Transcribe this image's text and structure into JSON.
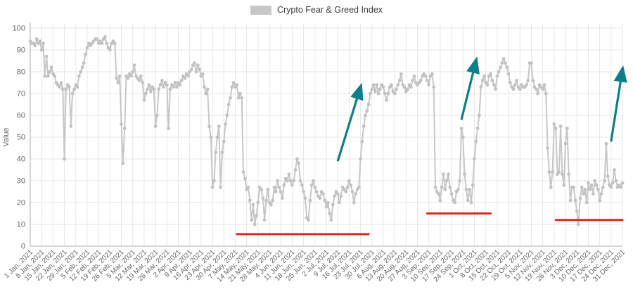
{
  "legend": {
    "label": "Crypto Fear & Greed Index",
    "swatch_color": "#c7c7c7"
  },
  "chart_data": {
    "type": "line",
    "title": "",
    "xlabel": "",
    "ylabel": "Value",
    "ylim": [
      0,
      100
    ],
    "grid": true,
    "legend_position": "top-center",
    "y_ticks": [
      0,
      10,
      20,
      30,
      40,
      50,
      60,
      70,
      80,
      90,
      100
    ],
    "x_tick_labels": [
      "1 Jan, 2021",
      "8 Jan, 2021",
      "15 Jan, 2021",
      "22 Jan, 2021",
      "29 Jan, 2021",
      "5 Feb, 2021",
      "12 Feb, 2021",
      "19 Feb, 2021",
      "26 Feb, 2021",
      "5 Mar, 2021",
      "12 Mar, 2021",
      "19 Mar, 2021",
      "26 Mar, 2021",
      "2 Apr, 2021",
      "9 Apr, 2021",
      "16 Apr, 2021",
      "23 Apr, 2021",
      "30 Apr, 2021",
      "7 May, 2021",
      "14 May, 2021",
      "21 May, 2021",
      "28 May, 2021",
      "4 Jun, 2021",
      "11 Jun, 2021",
      "18 Jun, 2021",
      "25 Jun, 2021",
      "2 Jul, 2021",
      "9 Jul, 2021",
      "16 Jul, 2021",
      "23 Jul, 2021",
      "30 Jul, 2021",
      "6 Aug, 2021",
      "13 Aug, 2021",
      "20 Aug, 2021",
      "27 Aug, 2021",
      "3 Sep, 2021",
      "10 Sep, 2021",
      "17 Sep, 2021",
      "24 Sep, 2021",
      "1 Oct, 2021",
      "8 Oct, 2021",
      "15 Oct, 2021",
      "22 Oct, 2021",
      "29 Oct, 2021",
      "5 Nov, 2021",
      "12 Nov, 2021",
      "19 Nov, 2021",
      "26 Nov, 2021",
      "3 Dec, 2021",
      "10 Dec, 2021",
      "17 Dec, 2021",
      "24 Dec, 2021",
      "31 Dec, 2021"
    ],
    "x_note": "daily values, one point per day of 2021; ticks weekly",
    "colors": {
      "grid": "#e6e6e6",
      "axis": "#a8a8a8",
      "tick_text": "#666666"
    },
    "series": [
      {
        "name": "Crypto Fear & Greed Index",
        "color": "#c7c7c7",
        "marker": "circle",
        "marker_color": "#c2c2c2",
        "values": [
          94,
          93,
          93,
          92,
          95,
          93,
          94,
          90,
          93,
          78,
          87,
          78,
          80,
          82,
          79,
          78,
          75,
          74,
          73,
          75,
          72,
          40,
          72,
          74,
          73,
          55,
          70,
          72,
          74,
          73,
          78,
          80,
          82,
          84,
          88,
          91,
          93,
          92,
          93,
          94,
          95,
          95,
          93,
          94,
          93,
          95,
          96,
          93,
          91,
          90,
          93,
          94,
          93,
          77,
          75,
          78,
          56,
          38,
          54,
          78,
          77,
          79,
          78,
          80,
          83,
          78,
          77,
          76,
          78,
          75,
          67,
          70,
          72,
          74,
          71,
          73,
          72,
          55,
          60,
          72,
          74,
          76,
          73,
          75,
          74,
          54,
          72,
          74,
          73,
          75,
          73,
          75,
          74,
          76,
          78,
          77,
          79,
          78,
          80,
          81,
          83,
          84,
          80,
          83,
          81,
          78,
          79,
          73,
          70,
          72,
          55,
          50,
          27,
          30,
          43,
          50,
          55,
          27,
          43,
          48,
          56,
          60,
          65,
          68,
          73,
          75,
          73,
          74,
          68,
          70,
          68,
          34,
          31,
          26,
          27,
          21,
          12,
          19,
          10,
          14,
          20,
          27,
          26,
          22,
          12,
          21,
          26,
          20,
          19,
          21,
          27,
          25,
          30,
          27,
          25,
          22,
          28,
          31,
          30,
          33,
          30,
          28,
          30,
          35,
          40,
          38,
          30,
          28,
          25,
          22,
          13,
          12,
          21,
          28,
          30,
          27,
          25,
          23,
          22,
          25,
          24,
          21,
          18,
          20,
          15,
          12,
          19,
          23,
          25,
          24,
          20,
          23,
          27,
          26,
          25,
          27,
          30,
          28,
          25,
          20,
          24,
          26,
          27,
          40,
          48,
          55,
          60,
          62,
          65,
          70,
          72,
          74,
          71,
          74,
          70,
          72,
          74,
          73,
          70,
          67,
          70,
          73,
          74,
          71,
          70,
          72,
          74,
          76,
          79,
          74,
          73,
          71,
          72,
          74,
          73,
          76,
          78,
          75,
          74,
          75,
          76,
          78,
          79,
          78,
          76,
          74,
          78,
          79,
          73,
          27,
          25,
          24,
          21,
          27,
          33,
          26,
          30,
          33,
          27,
          24,
          21,
          20,
          25,
          26,
          30,
          54,
          50,
          33,
          26,
          21,
          26,
          20,
          28,
          40,
          48,
          54,
          60,
          73,
          76,
          78,
          75,
          74,
          78,
          79,
          76,
          74,
          72,
          78,
          80,
          82,
          84,
          86,
          84,
          82,
          79,
          75,
          73,
          72,
          74,
          76,
          73,
          72,
          74,
          73,
          73,
          74,
          76,
          84,
          84,
          76,
          73,
          72,
          70,
          74,
          73,
          72,
          74,
          70,
          45,
          34,
          27,
          34,
          56,
          54,
          33,
          34,
          55,
          33,
          28,
          47,
          54,
          33,
          21,
          27,
          27,
          21,
          16,
          10,
          22,
          27,
          24,
          26,
          20,
          29,
          26,
          28,
          24,
          30,
          28,
          26,
          21,
          24,
          27,
          30,
          47,
          32,
          28,
          27,
          29,
          35,
          30,
          27,
          28,
          27,
          29
        ]
      }
    ],
    "annotations": {
      "support_lines": [
        {
          "color": "#d92a26",
          "value": 5.5,
          "x_start_day": 127,
          "x_end_day": 208
        },
        {
          "color": "#d92a26",
          "value": 15,
          "x_start_day": 244,
          "x_end_day": 283
        },
        {
          "color": "#d92a26",
          "value": 12,
          "x_start_day": 323,
          "x_end_day": 364
        }
      ],
      "arrows": [
        {
          "color": "#0f7e8b",
          "from": {
            "day": 189,
            "value": 39
          },
          "to": {
            "day": 203,
            "value": 73
          }
        },
        {
          "color": "#0f7e8b",
          "from": {
            "day": 265,
            "value": 58
          },
          "to": {
            "day": 274,
            "value": 85
          }
        },
        {
          "color": "#0f7e8b",
          "from": {
            "day": 357,
            "value": 48
          },
          "to": {
            "day": 364,
            "value": 81
          }
        }
      ]
    }
  }
}
